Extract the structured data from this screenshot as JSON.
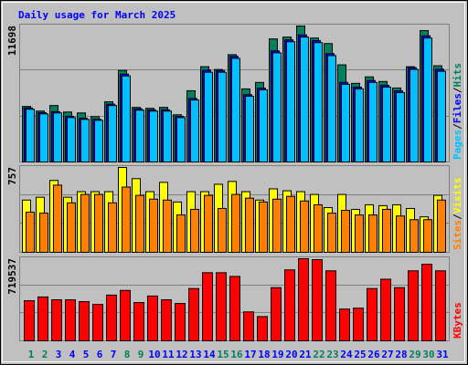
{
  "title": "Daily usage for March 2025",
  "title_color": "#0000ff",
  "separator": "/",
  "categories": [
    "1",
    "2",
    "3",
    "4",
    "5",
    "6",
    "7",
    "8",
    "9",
    "10",
    "11",
    "12",
    "13",
    "14",
    "15",
    "16",
    "17",
    "18",
    "19",
    "20",
    "21",
    "22",
    "23",
    "24",
    "25",
    "26",
    "27",
    "28",
    "29",
    "30",
    "31"
  ],
  "category_colors": [
    "#00805c",
    "#00805c",
    "#0000ff",
    "#0000ff",
    "#0000ff",
    "#0000ff",
    "#0000ff",
    "#00805c",
    "#00805c",
    "#0000ff",
    "#0000ff",
    "#0000ff",
    "#0000ff",
    "#0000ff",
    "#00805c",
    "#00805c",
    "#0000ff",
    "#0000ff",
    "#0000ff",
    "#0000ff",
    "#0000ff",
    "#00805c",
    "#00805c",
    "#0000ff",
    "#0000ff",
    "#0000ff",
    "#0000ff",
    "#0000ff",
    "#00805c",
    "#00805c",
    "#0000ff"
  ],
  "chart_data": [
    {
      "type": "bar",
      "ylim": [
        0,
        11698
      ],
      "yticks": [
        11698
      ],
      "series": [
        {
          "name": "Hits",
          "color": "#00805c",
          "values": [
            4775,
            4378,
            4854,
            4297,
            4218,
            3900,
            5173,
            7878,
            4695,
            4616,
            4695,
            4059,
            6128,
            8197,
            7958,
            9231,
            6287,
            6844,
            10584,
            10743,
            11698,
            10664,
            10186,
            8356,
            6764,
            7321,
            6923,
            6366,
            8197,
            11300,
            8276
          ]
        },
        {
          "name": "Files",
          "color": "#0000ff",
          "values": [
            4650,
            4240,
            4330,
            3930,
            3760,
            3680,
            4970,
            7560,
            4570,
            4480,
            4490,
            3920,
            5460,
            7900,
            7860,
            9080,
            5790,
            6350,
            9560,
            10510,
            10930,
            10440,
            9320,
            6850,
            6440,
            7010,
            6600,
            6120,
            8110,
            10850,
            7980
          ]
        },
        {
          "name": "Pages",
          "color": "#00c0ff",
          "values": [
            4536,
            4138,
            4218,
            3820,
            3661,
            3581,
            4854,
            7401,
            4456,
            4377,
            4377,
            3820,
            5332,
            7719,
            7719,
            8913,
            5650,
            6207,
            9390,
            10345,
            10743,
            10266,
            9151,
            6684,
            6287,
            6844,
            6446,
            5968,
            7958,
            10664,
            7799
          ]
        }
      ]
    },
    {
      "type": "bar",
      "ylim": [
        0,
        757
      ],
      "yticks": [
        757
      ],
      "series": [
        {
          "name": "Visits",
          "color": "#ffff00",
          "values": [
            466,
            491,
            641,
            491,
            541,
            541,
            541,
            757,
            657,
            541,
            624,
            449,
            541,
            541,
            607,
            632,
            541,
            466,
            566,
            549,
            541,
            516,
            399,
            516,
            383,
            424,
            416,
            424,
            391,
            316,
            508
          ]
        },
        {
          "name": "Sites",
          "color": "#ff8000",
          "values": [
            358,
            349,
            599,
            441,
            516,
            516,
            441,
            582,
            508,
            474,
            466,
            333,
            383,
            508,
            391,
            516,
            483,
            449,
            474,
            499,
            458,
            424,
            349,
            374,
            333,
            333,
            383,
            324,
            291,
            291,
            466
          ]
        }
      ]
    },
    {
      "type": "bar",
      "ylim": [
        0,
        719537
      ],
      "yticks": [
        719537
      ],
      "series": [
        {
          "name": "KBytes",
          "color": "#ff0000",
          "values": [
            351611,
            384319,
            359788,
            359788,
            343434,
            318903,
            400673,
            441558,
            335257,
            392496,
            359788,
            327080,
            457912,
            596921,
            596921,
            564213,
            253487,
            212602,
            466089,
            621452,
            719537,
            711399,
            613275,
            278018,
            286195,
            457912,
            539682,
            466089,
            613275,
            670514,
            613275
          ]
        }
      ]
    }
  ]
}
